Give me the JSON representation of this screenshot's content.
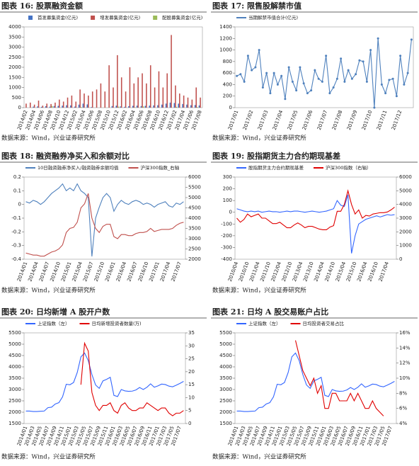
{
  "chart_data": [
    {
      "type": "bar",
      "title": "图表 16: 股票融资金额",
      "source": "数据来源：Wind，兴业证券研究所",
      "categories": [
        "2014/02",
        null,
        "2014/04",
        null,
        "2014/06",
        null,
        "2014/08",
        null,
        "2014/10",
        null,
        "2014/12",
        null,
        "2015/02",
        null,
        "2015/04",
        null,
        "2015/06",
        null,
        "2015/08",
        null,
        "2015/10",
        null,
        "2015/12",
        null,
        "2016/02",
        null,
        "2016/04",
        null,
        "2016/06",
        null,
        "2016/08",
        null,
        "2016/10",
        null,
        "2016/12",
        null,
        "2017/02",
        null,
        "2017/04",
        null,
        "2017/06",
        null,
        "2017/08"
      ],
      "series": [
        {
          "name": "首发募集资金(亿元)",
          "color": "#4472c4",
          "values": [
            0,
            0,
            50,
            60,
            40,
            70,
            50,
            80,
            90,
            100,
            120,
            110,
            50,
            150,
            200,
            160,
            30,
            0,
            0,
            0,
            0,
            80,
            100,
            60,
            40,
            70,
            90,
            100,
            80,
            90,
            100,
            110,
            120,
            150,
            200,
            250,
            230,
            200,
            180,
            150,
            120,
            130,
            110
          ]
        },
        {
          "name": "增发募集资金(亿元)",
          "color": "#c0504d",
          "values": [
            200,
            250,
            150,
            350,
            100,
            200,
            180,
            250,
            400,
            300,
            500,
            600,
            300,
            900,
            700,
            600,
            800,
            900,
            1200,
            800,
            2100,
            1000,
            2600,
            1500,
            800,
            2000,
            1200,
            1500,
            1700,
            1200,
            2100,
            1000,
            1800,
            1000,
            1700,
            3600,
            1100,
            700,
            600,
            500,
            400,
            1000,
            500
          ]
        },
        {
          "name": "配股募集资金(亿元)",
          "color": "#9bbb59",
          "values": [
            0,
            0,
            0,
            0,
            0,
            0,
            80,
            0,
            0,
            0,
            0,
            0,
            0,
            30,
            0,
            0,
            0,
            0,
            0,
            0,
            0,
            0,
            50,
            0,
            0,
            0,
            20,
            0,
            60,
            0,
            0,
            0,
            0,
            0,
            0,
            0,
            40,
            0,
            0,
            0,
            0,
            30,
            0
          ]
        }
      ],
      "ylim": [
        0,
        4000
      ],
      "yticks": [
        0,
        500,
        1000,
        1500,
        2000,
        2500,
        3000,
        3500,
        4000
      ]
    },
    {
      "type": "line",
      "title": "图表 17: 限售股解禁市值",
      "source": "数据来源：Wind，兴业证券研究所",
      "categories": [
        "2017/01",
        null,
        null,
        null,
        "2017/02",
        null,
        null,
        null,
        "2017/03",
        null,
        null,
        null,
        "2017/04",
        null,
        null,
        null,
        "2017/05",
        null,
        null,
        null,
        "2017/06",
        null,
        null,
        null,
        "2017/07",
        null,
        null,
        null,
        "2017/08",
        null,
        null,
        null,
        "2017/09",
        null,
        null,
        null,
        "2017/10",
        null,
        null,
        null,
        "2017/11",
        null,
        null,
        null,
        "2017/12",
        null,
        null,
        null
      ],
      "series": [
        {
          "name": "当期解禁市值合计(亿元)",
          "color": "#4f81bd",
          "marker": true,
          "values": [
            550,
            580,
            450,
            900,
            650,
            700,
            1000,
            350,
            600,
            250,
            600,
            400,
            550,
            150,
            700,
            450,
            300,
            700,
            420,
            250,
            300,
            650,
            500,
            450,
            900,
            250,
            350,
            500,
            850,
            450,
            650,
            500,
            580,
            820,
            800,
            450,
            1000,
            0,
            1200,
            400,
            250,
            480,
            500,
            200,
            900,
            400,
            600,
            1180
          ]
        }
      ],
      "ylim": [
        0,
        1400
      ],
      "yticks": [
        0,
        200,
        400,
        600,
        800,
        1000,
        1200,
        1400
      ]
    },
    {
      "type": "line",
      "title": "图表 18: 融资融券净买入和余额对比",
      "source": "数据来源：Wind，兴业证券研究所",
      "categories": [
        "2014/01",
        null,
        null,
        "2014/04",
        null,
        null,
        "2014/07",
        null,
        null,
        "2014/10",
        null,
        null,
        "2015/01",
        null,
        null,
        "2015/04",
        null,
        null,
        "2015/07",
        null,
        null,
        "2015/10",
        null,
        null,
        "2016/01",
        null,
        null,
        "2016/04",
        null,
        null,
        "2016/07",
        null,
        null,
        "2016/10",
        null,
        null,
        "2017/01",
        null,
        null,
        "2017/04",
        null,
        null,
        "2017/07",
        null
      ],
      "series": [
        {
          "name": "10日融资融券净买入/融资融券余额均值",
          "color": "#4f81bd",
          "values": [
            0.02,
            0.01,
            0.03,
            0.02,
            0.0,
            0.02,
            0.05,
            0.08,
            0.1,
            0.12,
            0.15,
            0.1,
            0.12,
            0.1,
            0.15,
            0.1,
            0.08,
            0.05,
            -0.38,
            -0.1,
            -0.02,
            0.05,
            0.08,
            0.05,
            -0.05,
            0.0,
            0.03,
            0.01,
            0.0,
            0.02,
            0.03,
            0.02,
            0.0,
            0.01,
            0.0,
            -0.02,
            0.0,
            0.01,
            0.02,
            -0.01,
            -0.02,
            0.01,
            0.0,
            0.02
          ]
        },
        {
          "name": "沪深300指数_右轴",
          "color": "#c0504d",
          "axis": "y2",
          "values": [
            2300,
            2250,
            2200,
            2200,
            2150,
            2150,
            2250,
            2350,
            2400,
            2500,
            2700,
            3300,
            3500,
            3550,
            3800,
            4500,
            4700,
            5200,
            4000,
            3500,
            3300,
            3600,
            3700,
            3700,
            3100,
            3000,
            3200,
            3200,
            3150,
            3150,
            3250,
            3300,
            3300,
            3350,
            3500,
            3350,
            3400,
            3450,
            3450,
            3450,
            3500,
            3650,
            3750,
            3800
          ]
        }
      ],
      "ylim": [
        -0.4,
        0.2
      ],
      "yticks": [
        -0.4,
        -0.3,
        -0.2,
        -0.1,
        0,
        0.1,
        0.2
      ],
      "y2lim": [
        2000,
        6000
      ],
      "y2ticks": [
        2000,
        2500,
        3000,
        3500,
        4000,
        4500,
        5000,
        5500,
        6000
      ]
    },
    {
      "type": "line",
      "title": "图表 19: 股指期货主力合约期现基差",
      "source": "数据来源：Wind，兴业证券研究所",
      "categories": [
        "2010/04",
        null,
        null,
        "2010/10",
        null,
        null,
        "2011/04",
        null,
        null,
        "2011/10",
        null,
        null,
        "2012/04",
        null,
        null,
        "2012/10",
        null,
        null,
        "2013/04",
        null,
        null,
        "2013/10",
        null,
        null,
        "2014/04",
        null,
        null,
        "2014/10",
        null,
        null,
        "2015/04",
        null,
        null,
        "2015/10",
        null,
        null,
        "2016/04",
        null,
        null,
        "2016/10",
        null,
        null,
        "2017/04",
        null,
        null
      ],
      "series": [
        {
          "name": "股指期货主力合约期现基差",
          "color": "#3366ff",
          "values": [
            30,
            20,
            10,
            5,
            10,
            5,
            10,
            0,
            5,
            10,
            5,
            5,
            0,
            5,
            10,
            5,
            10,
            10,
            5,
            0,
            5,
            10,
            5,
            0,
            5,
            10,
            20,
            30,
            100,
            60,
            50,
            150,
            -350,
            -200,
            -100,
            -80,
            -60,
            -50,
            -40,
            -30,
            -40,
            -30,
            -20,
            -25,
            -20
          ]
        },
        {
          "name": "沪深300指数（右轴）",
          "color": "#e00000",
          "axis": "y2",
          "values": [
            3000,
            2700,
            2900,
            3300,
            3100,
            3200,
            3300,
            3000,
            3000,
            2800,
            2600,
            2600,
            2700,
            2500,
            2300,
            2300,
            2500,
            2650,
            2500,
            2300,
            2400,
            2400,
            2300,
            2200,
            2150,
            2150,
            2350,
            2450,
            3500,
            3500,
            4000,
            5000,
            4000,
            3300,
            3600,
            3000,
            3200,
            3150,
            3300,
            3350,
            3400,
            3400,
            3450,
            3600,
            3800
          ]
        }
      ],
      "ylim": [
        -400,
        300
      ],
      "yticks": [
        -400,
        -300,
        -200,
        -100,
        0,
        100,
        200,
        300
      ],
      "y2lim": [
        0,
        6000
      ],
      "y2ticks": [
        0,
        1000,
        2000,
        3000,
        4000,
        5000,
        6000
      ]
    },
    {
      "type": "line",
      "title": "图表 20: 日均新增 A 股开户数",
      "source": "数据来源：Wind，兴业证券研究所",
      "categories": [
        "2014/01",
        null,
        "2014/03",
        null,
        "2014/05",
        null,
        "2014/07",
        null,
        "2014/09",
        null,
        "2014/11",
        null,
        "2015/01",
        null,
        "2015/03",
        null,
        "2015/05",
        null,
        "2015/07",
        null,
        "2015/09",
        null,
        "2015/11",
        null,
        "2016/01",
        null,
        "2016/03",
        null,
        "2016/05",
        null,
        "2016/07",
        null,
        "2016/09",
        null,
        "2016/11",
        null,
        "2017/01",
        null,
        "2017/03",
        null,
        "2017/05",
        null,
        "2017/07",
        null
      ],
      "series": [
        {
          "name": "上证指数（左）",
          "color": "#3366ff",
          "values": [
            2050,
            2050,
            2030,
            2030,
            2040,
            2050,
            2200,
            2220,
            2360,
            2420,
            2680,
            3230,
            3210,
            3310,
            3750,
            4440,
            4610,
            4280,
            3660,
            3200,
            3050,
            3380,
            3450,
            3540,
            2740,
            2690,
            3000,
            2940,
            2920,
            2930,
            2980,
            3090,
            3000,
            3100,
            3250,
            3100,
            3160,
            3240,
            3220,
            3150,
            3120,
            3190,
            3270,
            3360
          ]
        },
        {
          "name": "日均新增投资者数量(万)",
          "color": "#e00000",
          "axis": "y2",
          "values": [
            null,
            null,
            null,
            null,
            null,
            null,
            null,
            null,
            null,
            null,
            null,
            null,
            null,
            null,
            null,
            15,
            31,
            28,
            12,
            7,
            5,
            7,
            7,
            8,
            5,
            4,
            7,
            8,
            6,
            5,
            5,
            6,
            6,
            8,
            7,
            6,
            5,
            6,
            6,
            4,
            3,
            4,
            4,
            5
          ]
        }
      ],
      "ylim": [
        1500,
        5500
      ],
      "yticks": [
        1500,
        2000,
        2500,
        3000,
        3500,
        4000,
        4500,
        5000,
        5500
      ],
      "y2lim": [
        0,
        35
      ],
      "y2ticks": [
        0,
        5,
        10,
        15,
        20,
        25,
        30,
        35
      ]
    },
    {
      "type": "line",
      "title": "图表 21: 日均 A 股交易账户占比",
      "source": "数据来源：Wind，兴业证券研究所",
      "categories": [
        "2014/01",
        null,
        "2014/03",
        null,
        "2014/05",
        null,
        "2014/07",
        null,
        "2014/09",
        null,
        "2014/11",
        null,
        "2015/01",
        null,
        "2015/03",
        null,
        "2015/05",
        null,
        "2015/07",
        null,
        "2015/09",
        null,
        "2015/11",
        null,
        "2016/01",
        null,
        "2016/03",
        null,
        "2016/05",
        null,
        "2016/07",
        null,
        "2016/09",
        null,
        "2016/11",
        null,
        "2017/01",
        null,
        "2017/03",
        null,
        "2017/05",
        null,
        "2017/07",
        null
      ],
      "series": [
        {
          "name": "上证指数（左）",
          "color": "#3366ff",
          "values": [
            2050,
            2050,
            2030,
            2030,
            2040,
            2050,
            2200,
            2220,
            2360,
            2420,
            2680,
            3230,
            3210,
            3310,
            3750,
            4440,
            4610,
            4280,
            3660,
            3200,
            3050,
            3380,
            3450,
            3540,
            2740,
            2690,
            3000,
            2940,
            2920,
            2930,
            2980,
            3090,
            3000,
            3100,
            3250,
            3100,
            3160,
            3240,
            3220,
            3150,
            3120,
            3190,
            3270,
            3360
          ]
        },
        {
          "name": "日均投资者交易占比",
          "color": "#e00000",
          "axis": "y2",
          "values": [
            null,
            null,
            null,
            null,
            null,
            null,
            null,
            null,
            null,
            null,
            null,
            null,
            null,
            null,
            null,
            null,
            15,
            13,
            11,
            10,
            9,
            10,
            8,
            9,
            6,
            6,
            8,
            8,
            7,
            7,
            7,
            8,
            7,
            8,
            7,
            6,
            6,
            7,
            6,
            5.5,
            5,
            null,
            null,
            null
          ]
        }
      ],
      "ylim": [
        1500,
        5500
      ],
      "yticks": [
        1500,
        2000,
        2500,
        3000,
        3500,
        4000,
        4500,
        5000,
        5500
      ],
      "y2lim": [
        4,
        16
      ],
      "y2ticks": [
        {
          "value": 4,
          "label": "4%"
        },
        {
          "value": 6,
          "label": "6%"
        },
        {
          "value": 8,
          "label": "8%"
        },
        {
          "value": 10,
          "label": "10%"
        },
        {
          "value": 12,
          "label": "12%"
        },
        {
          "value": 14,
          "label": "14%"
        },
        {
          "value": 16,
          "label": "16%"
        }
      ]
    }
  ]
}
